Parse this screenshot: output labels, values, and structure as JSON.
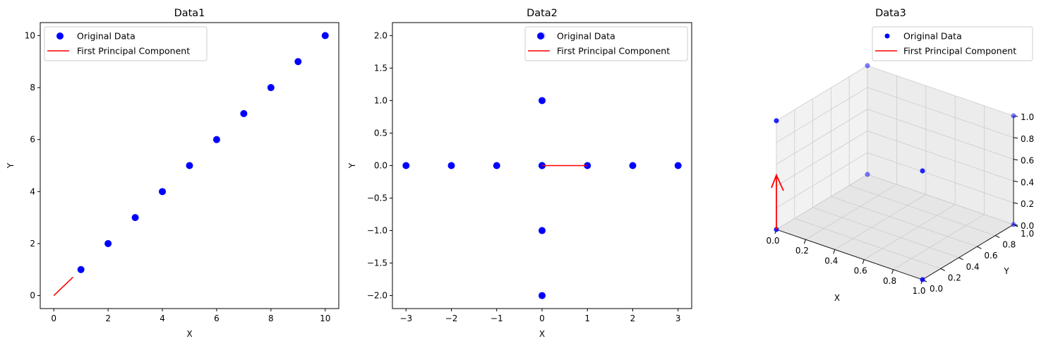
{
  "legend": {
    "points": "Original Data",
    "line": "First Principal Component"
  },
  "colors": {
    "points": "#0000ff",
    "line": "#ff0000",
    "pane1": "#f2f2f2",
    "pane2": "#e6e6e6",
    "pane3": "#ececec",
    "grid3d": "#cccccc"
  },
  "chart_data": [
    {
      "type": "scatter",
      "title": "Data1",
      "xlabel": "X",
      "ylabel": "Y",
      "xlim": [
        -0.5,
        10.5
      ],
      "ylim": [
        -0.5,
        10.5
      ],
      "xticks": [
        0,
        2,
        4,
        6,
        8,
        10
      ],
      "yticks": [
        0,
        2,
        4,
        6,
        8,
        10
      ],
      "legend_position": "upper-left",
      "series": [
        {
          "name": "Original Data",
          "kind": "points",
          "x": [
            1,
            2,
            3,
            4,
            5,
            6,
            7,
            8,
            9,
            10
          ],
          "y": [
            1,
            2,
            3,
            4,
            5,
            6,
            7,
            8,
            9,
            10
          ]
        },
        {
          "name": "First Principal Component",
          "kind": "line",
          "x": [
            0,
            0.707
          ],
          "y": [
            0,
            0.707
          ]
        }
      ]
    },
    {
      "type": "scatter",
      "title": "Data2",
      "xlabel": "X",
      "ylabel": "Y",
      "xlim": [
        -3.3,
        3.3
      ],
      "ylim": [
        -2.2,
        2.2
      ],
      "xticks": [
        -3,
        -2,
        -1,
        0,
        1,
        2,
        3
      ],
      "xticklabels": [
        "−3",
        "−2",
        "−1",
        "0",
        "1",
        "2",
        "3"
      ],
      "yticks": [
        2.0,
        1.5,
        1.0,
        0.5,
        0.0,
        -0.5,
        -1.0,
        -1.5,
        -2.0
      ],
      "yticklabels": [
        "2.0",
        "1.5",
        "1.0",
        "0.5",
        "0.0",
        "−0.5",
        "−1.0",
        "−1.5",
        "−2.0"
      ],
      "legend_position": "upper-right",
      "series": [
        {
          "name": "Original Data",
          "kind": "points",
          "x": [
            -3,
            -2,
            -1,
            0,
            1,
            2,
            3,
            0,
            0,
            0,
            0,
            0
          ],
          "y": [
            0,
            0,
            0,
            0,
            0,
            0,
            0,
            1,
            2,
            -1,
            -2,
            0
          ]
        },
        {
          "name": "First Principal Component",
          "kind": "line",
          "x": [
            0,
            1
          ],
          "y": [
            0,
            0
          ]
        }
      ]
    },
    {
      "type": "scatter3d",
      "title": "Data3",
      "xlabel": "X",
      "ylabel": "Y",
      "zlabel": "",
      "xlim": [
        0,
        1
      ],
      "ylim": [
        0,
        1
      ],
      "zlim": [
        0,
        1
      ],
      "xticks": [
        0.0,
        0.2,
        0.4,
        0.6,
        0.8,
        1.0
      ],
      "yticks": [
        0.0,
        0.2,
        0.4,
        0.6,
        0.8,
        1.0
      ],
      "zticks": [
        0.0,
        0.2,
        0.4,
        0.6,
        0.8,
        1.0
      ],
      "legend_position": "upper-right",
      "series": [
        {
          "name": "Original Data",
          "kind": "points",
          "x": [
            0,
            1,
            0,
            0,
            1,
            1,
            0,
            1
          ],
          "y": [
            0,
            0,
            1,
            0,
            1,
            0,
            1,
            1
          ],
          "z": [
            0,
            0,
            0,
            1,
            0,
            1,
            1,
            1
          ]
        },
        {
          "name": "First Principal Component",
          "kind": "arrow",
          "x": [
            0,
            0
          ],
          "y": [
            0,
            0
          ],
          "z": [
            0,
            0.5
          ]
        }
      ]
    }
  ]
}
